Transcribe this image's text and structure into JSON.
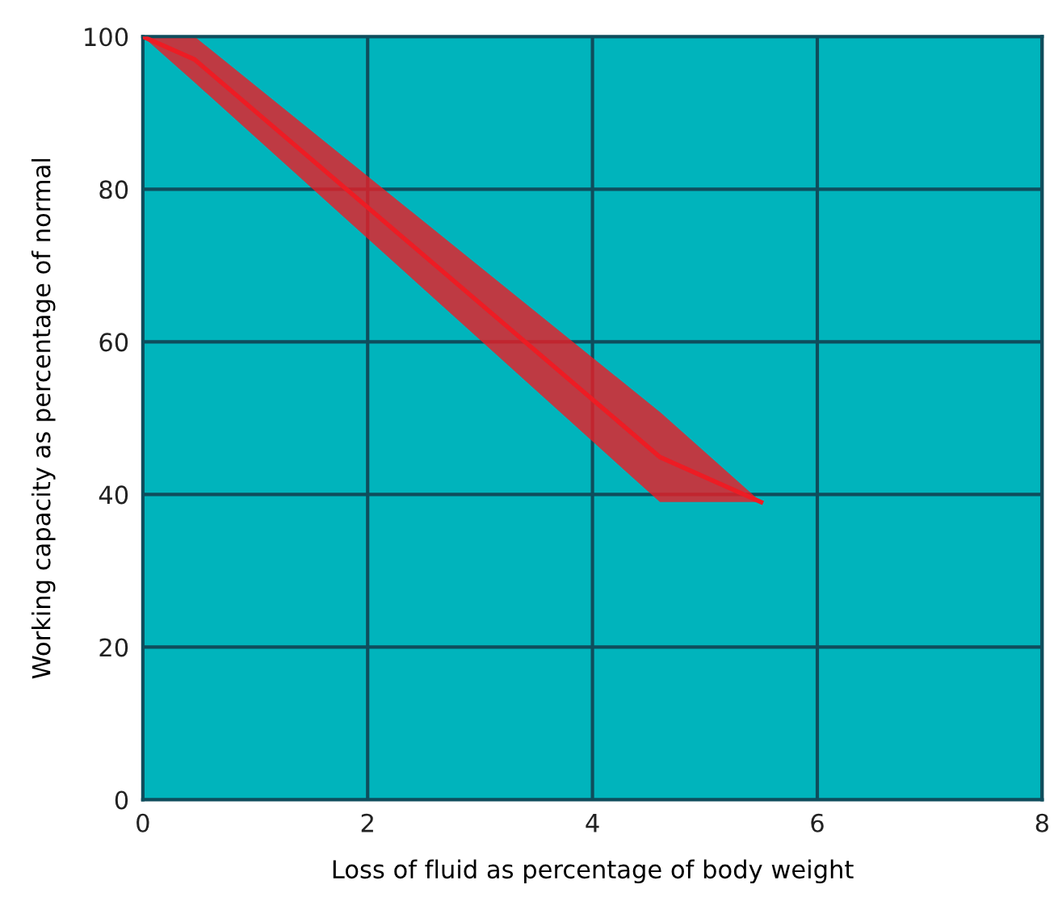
{
  "chart_data": {
    "type": "line",
    "xlabel": "Loss of fluid as percentage of body weight",
    "ylabel": "Working capacity as percentage of normal",
    "series": [
      {
        "color": "#ed1c24",
        "x": [
          0,
          0.46,
          4.6,
          5.5
        ],
        "values": [
          100,
          97,
          44.9,
          39
        ],
        "lower": [
          100,
          94,
          39,
          39
        ],
        "upper": [
          100,
          100,
          50.8,
          39
        ]
      }
    ],
    "xlim": [
      0,
      8
    ],
    "ylim": [
      0,
      100
    ],
    "xticks": [
      0,
      2,
      4,
      6,
      8
    ],
    "yticks": [
      0,
      20,
      40,
      60,
      80,
      100
    ],
    "grid": true
  }
}
